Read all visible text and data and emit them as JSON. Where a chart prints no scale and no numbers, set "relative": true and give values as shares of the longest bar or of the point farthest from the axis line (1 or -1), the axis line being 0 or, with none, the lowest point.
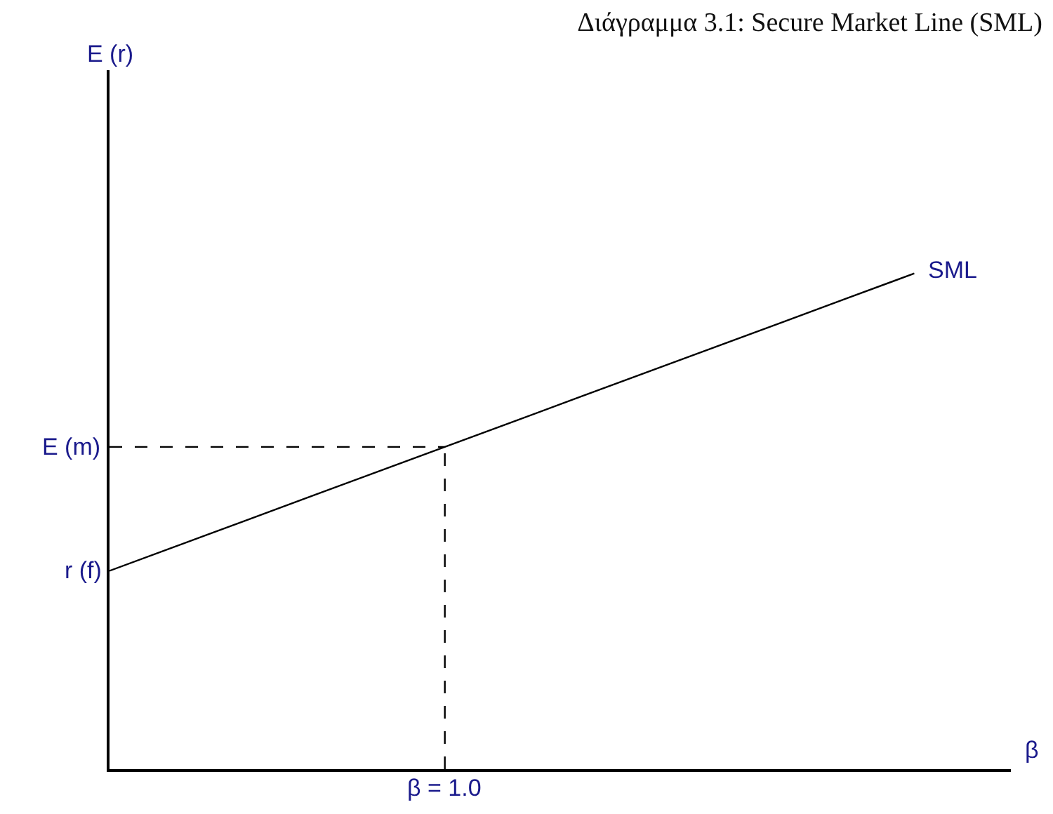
{
  "chart_data": {
    "type": "line",
    "title": "Διάγραμμα 3.1: Secure Market Line (SML)",
    "xlabel": "β",
    "relative": true,
    "legend": false,
    "marker": "none",
    "line_style": "solid",
    "categories": [
      null,
      null,
      null,
      null,
      null,
      null,
      null,
      null,
      null,
      null,
      null,
      null,
      null
    ],
    "series": [
      {
        "name": "SML",
        "color": "#000000",
        "values": [
          0.4,
          0.45,
          0.5,
          0.55,
          0.6,
          0.65,
          0.7,
          0.75,
          0.8,
          0.85,
          0.9,
          0.95,
          1.0
        ]
      }
    ],
    "ref_lines": [
      {
        "axis": "y",
        "value": 0.65,
        "label": "E (m)",
        "color": "#000000",
        "line_style": "dashed"
      }
    ],
    "annotations": [
      "r (f)",
      "β = 1.0",
      "E (r)"
    ]
  }
}
